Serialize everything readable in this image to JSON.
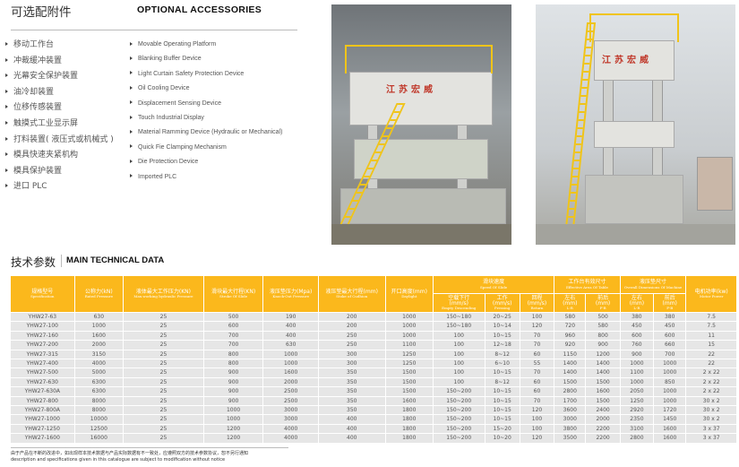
{
  "accessories": {
    "title_cn": "可选配附件",
    "title_en": "OPTIONAL ACCESSORIES",
    "items_cn": [
      "移动工作台",
      "冲裁缓冲装置",
      "光幕安全保护装置",
      "油冷却装置",
      "位移传感装置",
      "触摸式工业显示屏",
      "打料装置( 液压式或机械式 )",
      "模具快速夹紧机构",
      "模具保护装置",
      "进口 PLC"
    ],
    "items_en": [
      "Movable Operating Platform",
      "Blanking Buffer Device",
      "Light Curtain Safety Protection Device",
      "Oil Cooling Device",
      "Displacement Sensing Device",
      "Touch Industrial Display",
      "Material Ramming Device (Hydraulic or Mechanical)",
      "Quick Fie Clamping Mechanism",
      "Die Protection Device",
      "Imported PLC"
    ]
  },
  "photos": {
    "sign_text": "江苏宏威",
    "accent": "#f0c419"
  },
  "technical": {
    "title_cn": "技术参数",
    "title_en": "MAIN TECHNICAL DATA",
    "header_color": "#fbb81c",
    "headers": {
      "spec": {
        "cn": "规格型号",
        "en": "Specification"
      },
      "rated": {
        "cn": "公称力(kN)",
        "en": "Rated Pressure"
      },
      "maxwork": {
        "cn": "液体最大工作压力(KN)",
        "en": "Max.working hydraulic Pressure"
      },
      "stroke": {
        "cn": "滑块最大行程(KN)",
        "en": "Stroke Of Slide"
      },
      "knock": {
        "cn": "液压垫压力(Mpa)",
        "en": "Knock-Out Pressure"
      },
      "cushion": {
        "cn": "液压垫最大行程(mm)",
        "en": "Stoke of Cudhion"
      },
      "daylight": {
        "cn": "开口高度(mm)",
        "en": "Daylight"
      },
      "speed": {
        "cn": "滑块速度",
        "en": "Speed Of Slide"
      },
      "empty": {
        "cn": "空载下行",
        "unit": "(mm/s)",
        "en": "Empty Descending"
      },
      "pressing": {
        "cn": "工作",
        "unit": "(mm/s)",
        "en": "Pressing"
      },
      "return": {
        "cn": "回程",
        "unit": "(mm/s)",
        "en": "Return"
      },
      "table": {
        "cn": "工作台有效尺寸",
        "en": "Effective Area Of Table"
      },
      "table_lr": {
        "cn": "左右",
        "unit": "(mm)",
        "en": "L-R"
      },
      "table_fb": {
        "cn": "前后",
        "unit": "(mm)",
        "en": "F-B"
      },
      "cush_dim": {
        "cn": "液压垫尺寸",
        "en": "Overall Dimensions Of Machine"
      },
      "cush_lr": {
        "cn": "左右",
        "unit": "(mm)",
        "en": "L-R"
      },
      "cush_fb": {
        "cn": "前后",
        "unit": "(mm)",
        "en": "F-B"
      },
      "motor": {
        "cn": "电机功率(kw)",
        "en": "Motor Power"
      }
    },
    "rows": [
      [
        "YHW27-63",
        "630",
        "25",
        "500",
        "190",
        "200",
        "1000",
        "150~180",
        "20~25",
        "100",
        "580",
        "500",
        "380",
        "380",
        "7.5"
      ],
      [
        "YHW27-100",
        "1000",
        "25",
        "600",
        "400",
        "200",
        "1000",
        "150~180",
        "10~14",
        "120",
        "720",
        "580",
        "450",
        "450",
        "7.5"
      ],
      [
        "YHW27-160",
        "1600",
        "25",
        "700",
        "400",
        "250",
        "1000",
        "100",
        "10~15",
        "70",
        "960",
        "800",
        "600",
        "600",
        "11"
      ],
      [
        "YHW27-200",
        "2000",
        "25",
        "700",
        "630",
        "250",
        "1100",
        "100",
        "12~18",
        "70",
        "920",
        "900",
        "760",
        "660",
        "15"
      ],
      [
        "YHW27-315",
        "3150",
        "25",
        "800",
        "1000",
        "300",
        "1250",
        "100",
        "8~12",
        "60",
        "1150",
        "1200",
        "900",
        "700",
        "22"
      ],
      [
        "YHW27-400",
        "4000",
        "25",
        "800",
        "1000",
        "300",
        "1250",
        "100",
        "6~10",
        "55",
        "1400",
        "1400",
        "1000",
        "1000",
        "22"
      ],
      [
        "YHW27-500",
        "5000",
        "25",
        "900",
        "1600",
        "350",
        "1500",
        "100",
        "10~15",
        "70",
        "1400",
        "1400",
        "1100",
        "1000",
        "2 x 22"
      ],
      [
        "YHW27-630",
        "6300",
        "25",
        "900",
        "2000",
        "350",
        "1500",
        "100",
        "8~12",
        "60",
        "1500",
        "1500",
        "1000",
        "850",
        "2 x 22"
      ],
      [
        "YHW27-630A",
        "6300",
        "25",
        "900",
        "2500",
        "350",
        "1500",
        "150~200",
        "10~15",
        "60",
        "2800",
        "1600",
        "2050",
        "1000",
        "2 x 22"
      ],
      [
        "YHW27-800",
        "8000",
        "25",
        "900",
        "2500",
        "350",
        "1600",
        "150~200",
        "10~15",
        "70",
        "1700",
        "1500",
        "1250",
        "1000",
        "30 x 2"
      ],
      [
        "YHW27-800A",
        "8000",
        "25",
        "1000",
        "3000",
        "350",
        "1800",
        "150~200",
        "10~15",
        "120",
        "3600",
        "2400",
        "2920",
        "1720",
        "30 x 2"
      ],
      [
        "YHW27-1000",
        "10000",
        "25",
        "1000",
        "3000",
        "400",
        "1800",
        "150~200",
        "10~15",
        "100",
        "3000",
        "2000",
        "2350",
        "1450",
        "30 x 2"
      ],
      [
        "YHW27-1250",
        "12500",
        "25",
        "1200",
        "4000",
        "400",
        "1800",
        "150~200",
        "15~20",
        "100",
        "3800",
        "2200",
        "3100",
        "1600",
        "3 x 37"
      ],
      [
        "YHW27-1600",
        "16000",
        "25",
        "1200",
        "4000",
        "400",
        "1800",
        "150~200",
        "10~20",
        "120",
        "3500",
        "2200",
        "2800",
        "1600",
        "3 x 37"
      ]
    ],
    "note_cn": "由于产品在不断的改进中，如出现样本技术数据与产品实际数据有不一致处，应遵照双方的技术参数协议，恕不另行通知",
    "note_en": "description and specifications given in this catalogue are subject to modification without notice"
  }
}
